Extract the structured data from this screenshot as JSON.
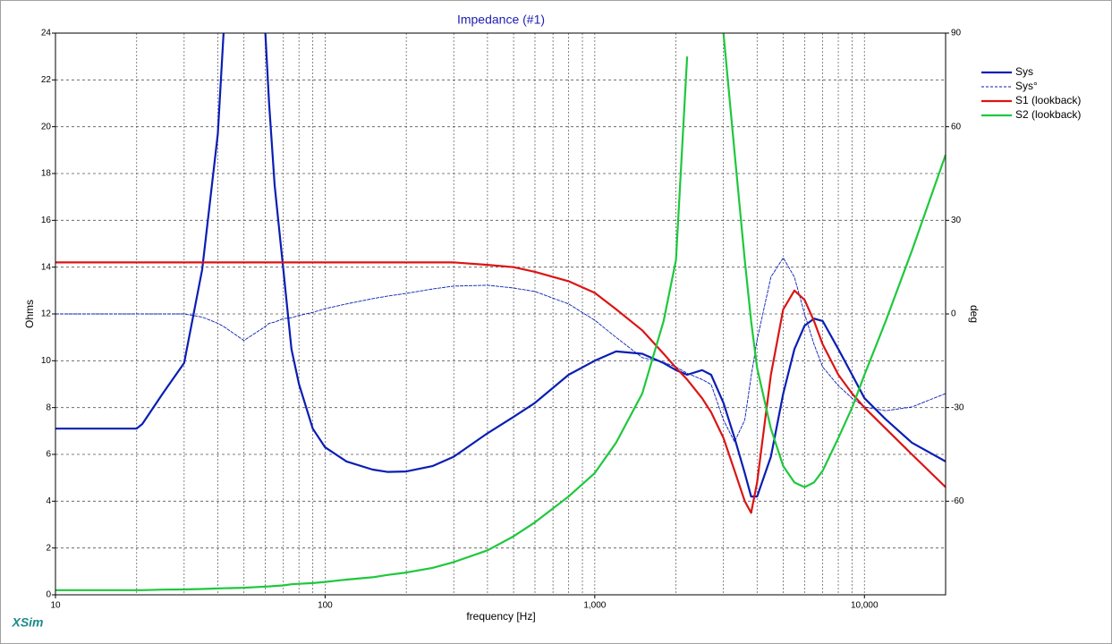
{
  "chart_data": {
    "type": "line",
    "title": "Impedance (#1)",
    "xlabel": "frequency [Hz]",
    "ylabel": "Ohms",
    "y2label": "deg",
    "watermark": "XSim",
    "xlog": true,
    "grid": true,
    "xminor_grid": true,
    "legend": "right",
    "xlim": [
      10,
      20000
    ],
    "xticks": [
      10,
      100,
      {
        "value": 1000,
        "label": "1,000"
      },
      {
        "value": 10000,
        "label": "10,000"
      }
    ],
    "ylim": [
      0,
      24
    ],
    "yticks": [
      0,
      2,
      4,
      6,
      8,
      10,
      12,
      14,
      16,
      18,
      20,
      22,
      24
    ],
    "y2lim": [
      -90,
      90
    ],
    "y2ticks": [
      -60,
      -30,
      0,
      30,
      60,
      90
    ],
    "x": [
      10,
      15,
      20,
      21,
      25,
      30,
      35,
      40,
      42,
      50,
      60,
      62,
      65,
      70,
      75,
      80,
      90,
      100,
      120,
      150,
      170,
      200,
      250,
      300,
      400,
      500,
      600,
      800,
      1000,
      1200,
      1500,
      1800,
      2000,
      2200,
      2500,
      2700,
      3000,
      3300,
      3600,
      3800,
      4000,
      4500,
      5000,
      5500,
      6000,
      6500,
      7000,
      8000,
      9000,
      10000,
      12000,
      15000,
      20000
    ],
    "series": [
      {
        "name": "Sys",
        "color": "#0a1eb4",
        "width": 2.2,
        "values": [
          7.1,
          7.1,
          7.1,
          7.3,
          8.6,
          9.9,
          13.9,
          19.7,
          24,
          null,
          24,
          21,
          17.5,
          13.9,
          10.5,
          9.0,
          7.1,
          6.3,
          5.7,
          5.35,
          5.25,
          5.27,
          5.5,
          5.9,
          6.9,
          7.6,
          8.2,
          9.4,
          10.0,
          10.4,
          10.3,
          9.9,
          9.6,
          9.4,
          9.6,
          9.4,
          8.2,
          6.7,
          5.2,
          4.2,
          4.2,
          5.9,
          8.6,
          10.5,
          11.5,
          11.8,
          11.7,
          10.5,
          9.4,
          8.4,
          7.5,
          6.5,
          5.7
        ]
      },
      {
        "name": "Sys°",
        "color": "#0a1eb4",
        "width": 0.9,
        "dash": true,
        "axis": "y2",
        "values": [
          0,
          0,
          0,
          0,
          0,
          0,
          -1,
          -3,
          -4,
          -8.5,
          -4,
          -3,
          -2.6,
          -1.5,
          -1.2,
          -0.5,
          0.5,
          1.7,
          3.2,
          4.9,
          5.7,
          6.6,
          8,
          8.9,
          9.2,
          8.3,
          7.2,
          3.2,
          -2,
          -7.5,
          -14,
          -15.5,
          -17,
          -19,
          -21,
          -22.6,
          -34,
          -41,
          -34,
          -20,
          -8.3,
          11.8,
          18,
          11.8,
          0,
          -9.7,
          -17,
          -23,
          -27,
          -29.8,
          -31,
          -29.8,
          -25.5
        ]
      },
      {
        "name": "S1 (lookback)",
        "color": "#dc1414",
        "width": 2.2,
        "values": [
          14.2,
          14.2,
          14.2,
          14.2,
          14.2,
          14.2,
          14.2,
          14.2,
          14.2,
          14.2,
          14.2,
          14.2,
          14.2,
          14.2,
          14.2,
          14.2,
          14.2,
          14.2,
          14.2,
          14.2,
          14.2,
          14.2,
          14.2,
          14.2,
          14.1,
          14.0,
          13.8,
          13.4,
          12.9,
          12.2,
          11.3,
          10.3,
          9.7,
          9.2,
          8.4,
          7.8,
          6.7,
          5.3,
          4.0,
          3.5,
          4.8,
          9.4,
          12.2,
          13.0,
          12.6,
          11.7,
          10.7,
          9.4,
          8.6,
          8.0,
          7.1,
          6.0,
          4.6
        ]
      },
      {
        "name": "S2 (lookback)",
        "color": "#1ec83c",
        "width": 2.2,
        "values": [
          0.2,
          0.2,
          0.2,
          0.2,
          0.22,
          0.23,
          0.25,
          0.27,
          0.28,
          0.3,
          0.35,
          0.36,
          0.38,
          0.4,
          0.45,
          0.47,
          0.5,
          0.55,
          0.65,
          0.75,
          0.85,
          0.95,
          1.15,
          1.4,
          1.9,
          2.5,
          3.1,
          4.2,
          5.2,
          6.5,
          8.6,
          11.7,
          14.3,
          23,
          null,
          null,
          24,
          18.9,
          14.3,
          11.7,
          9.7,
          7.1,
          5.5,
          4.8,
          4.6,
          4.8,
          5.3,
          6.7,
          8.0,
          9.4,
          11.7,
          14.7,
          18.8
        ]
      }
    ]
  }
}
